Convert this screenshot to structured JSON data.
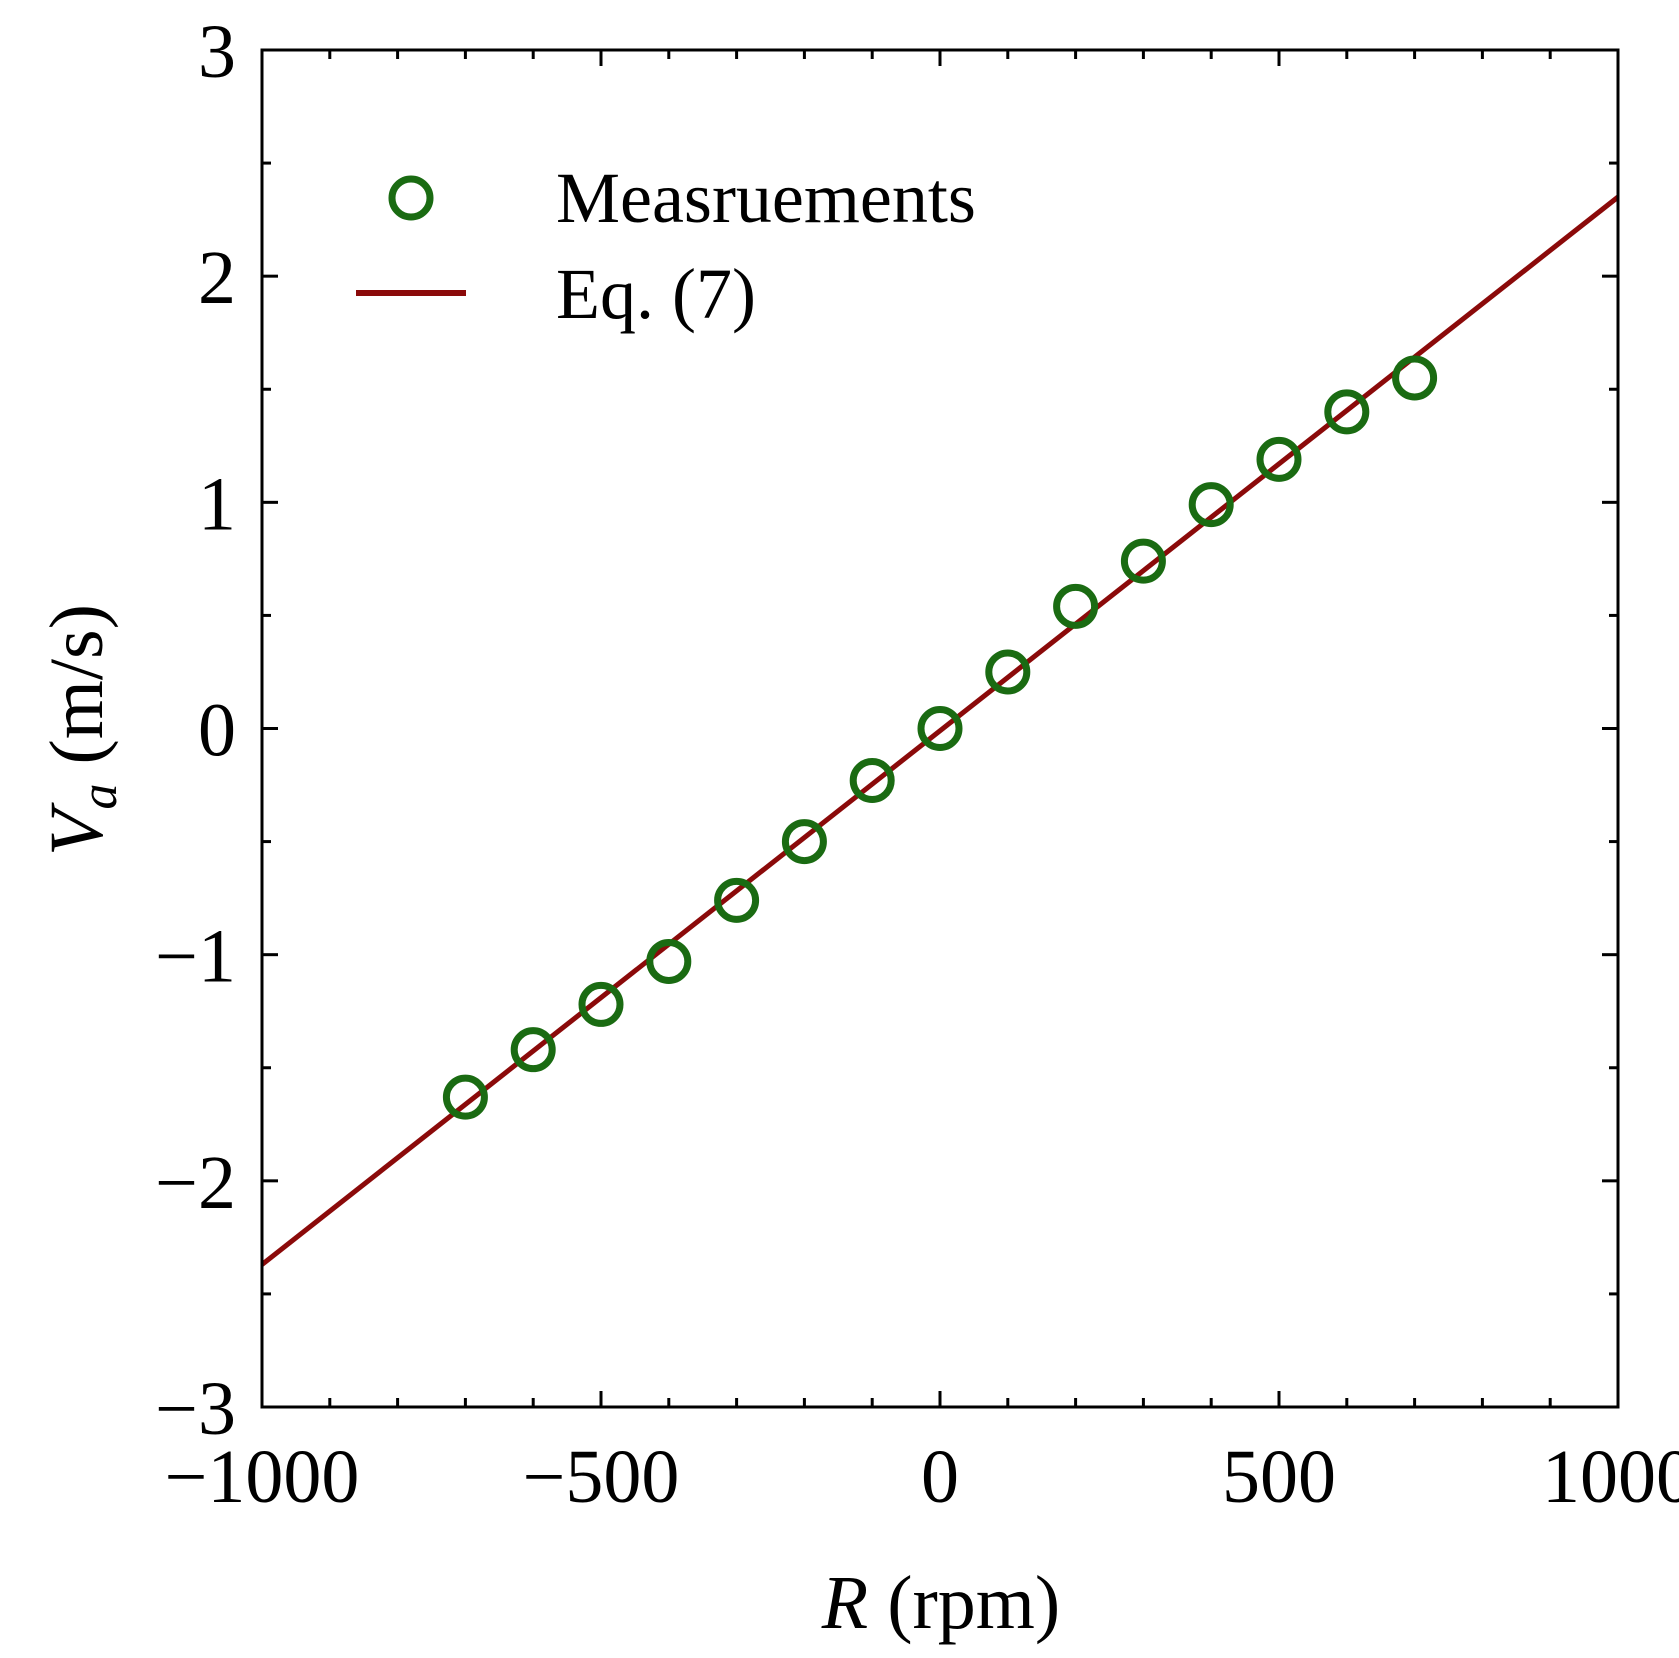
{
  "chart_data": {
    "type": "scatter",
    "title": "",
    "xlabel": {
      "symbol": "R",
      "unit": " (rpm)"
    },
    "ylabel": {
      "symbol": "V",
      "subscript": "a",
      "unit": " (m/s)"
    },
    "xlim": [
      -1000,
      1000
    ],
    "ylim": [
      -3,
      3
    ],
    "xticks": [
      -1000,
      -500,
      0,
      500,
      1000
    ],
    "xtick_labels": [
      "−1000",
      "−500",
      "0",
      "500",
      "1000"
    ],
    "yticks": [
      -3,
      -2,
      -1,
      0,
      1,
      2,
      3
    ],
    "ytick_labels": [
      "−3",
      "−2",
      "−1",
      "0",
      "1",
      "2",
      "3"
    ],
    "x_minor_step": 100,
    "y_minor_step": 0.5,
    "grid": false,
    "legend_position": "top-left",
    "series": [
      {
        "name": "Measruements",
        "kind": "markers",
        "marker": "open-circle",
        "color": "#1a6b12",
        "x": [
          -700,
          -600,
          -500,
          -400,
          -300,
          -200,
          -100,
          0,
          100,
          200,
          300,
          400,
          500,
          600,
          700
        ],
        "y": [
          -1.63,
          -1.42,
          -1.22,
          -1.03,
          -0.76,
          -0.5,
          -0.23,
          0.0,
          0.25,
          0.54,
          0.74,
          0.99,
          1.19,
          1.4,
          1.55
        ]
      },
      {
        "name": "Eq. (7)",
        "kind": "line",
        "color": "#8b0a0a",
        "x": [
          -1000,
          1000
        ],
        "y": [
          -2.37,
          2.35
        ]
      }
    ]
  }
}
